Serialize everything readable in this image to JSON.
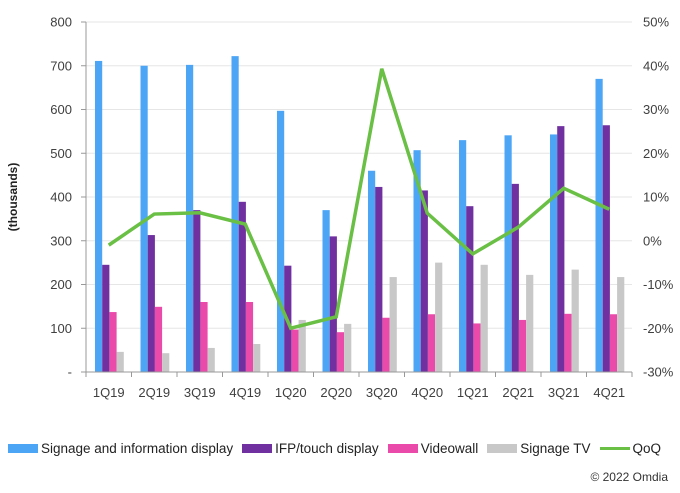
{
  "chart_data": {
    "type": "bar",
    "title": "",
    "xlabel": "",
    "ylabel": "(thousands)",
    "y2label": "",
    "ylim": [
      0,
      800
    ],
    "y2lim": [
      -30,
      50
    ],
    "grid": true,
    "legend_position": "bottom",
    "categories": [
      "1Q19",
      "2Q19",
      "3Q19",
      "4Q19",
      "1Q20",
      "2Q20",
      "3Q20",
      "4Q20",
      "1Q21",
      "2Q21",
      "3Q21",
      "4Q21"
    ],
    "y_ticks": [
      "-",
      "100",
      "200",
      "300",
      "400",
      "500",
      "600",
      "700",
      "800"
    ],
    "y_tick_values": [
      0,
      100,
      200,
      300,
      400,
      500,
      600,
      700,
      800
    ],
    "y2_ticks": [
      "-30%",
      "-20%",
      "-10%",
      "0%",
      "10%",
      "20%",
      "30%",
      "40%",
      "50%"
    ],
    "y2_tick_values": [
      -30,
      -20,
      -10,
      0,
      10,
      20,
      30,
      40,
      50
    ],
    "series": [
      {
        "name": "Signage and information display",
        "type": "bar",
        "color": "#4da6f5",
        "values": [
          711,
          700,
          702,
          722,
          597,
          370,
          460,
          507,
          530,
          541,
          543,
          670
        ]
      },
      {
        "name": "IFP/touch display",
        "type": "bar",
        "color": "#7030a0",
        "values": [
          245,
          313,
          370,
          389,
          243,
          310,
          423,
          415,
          379,
          430,
          562,
          564
        ]
      },
      {
        "name": "Videowall",
        "type": "bar",
        "color": "#ea4aaa",
        "values": [
          137,
          149,
          160,
          160,
          97,
          91,
          124,
          132,
          111,
          119,
          133,
          132
        ]
      },
      {
        "name": "Signage TV",
        "type": "bar",
        "color": "#c8c8c8",
        "values": [
          46,
          43,
          55,
          64,
          119,
          110,
          217,
          250,
          245,
          222,
          234,
          217
        ]
      },
      {
        "name": "QoQ",
        "type": "line",
        "axis": "right",
        "color": "#6abf45",
        "values": [
          -1.0,
          6.1,
          6.4,
          3.8,
          -20.0,
          -17.4,
          39.3,
          6.3,
          -3.0,
          3.1,
          12.0,
          7.2
        ]
      }
    ]
  },
  "copyright": "© 2022 Omdia"
}
